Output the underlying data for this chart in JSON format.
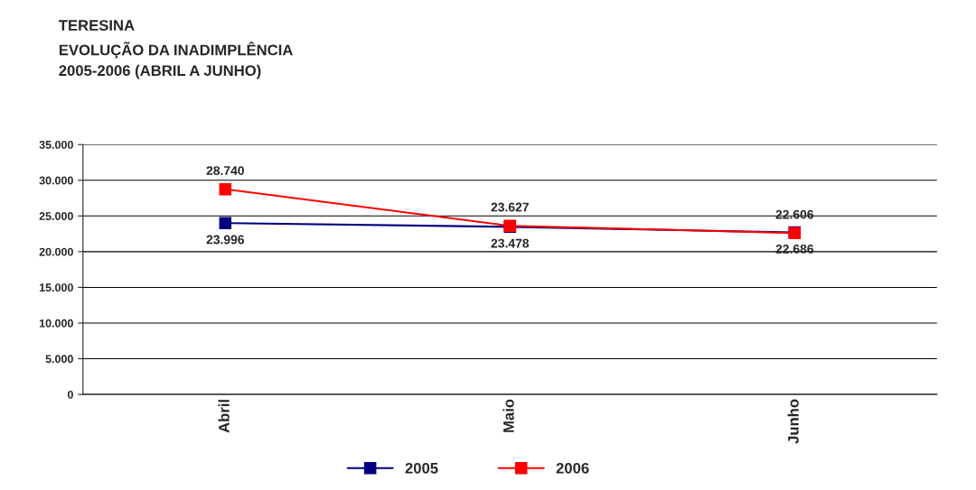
{
  "chart_data": {
    "type": "line",
    "title": "TERESINA\nEVOLUÇÃO DA INADIMPLÊNCIA\n2005-2006 (ABRIL A JUNHO)",
    "categories": [
      "Abril",
      "Maio",
      "Junho"
    ],
    "series": [
      {
        "name": "2005",
        "color": "#000080",
        "values": [
          23996,
          23478,
          22686
        ],
        "value_labels": [
          "23.996",
          "23.478",
          "22.686"
        ]
      },
      {
        "name": "2006",
        "color": "#ff0000",
        "values": [
          28740,
          23627,
          22606
        ],
        "value_labels": [
          "28.740",
          "23.627",
          "22.606"
        ]
      }
    ],
    "ylim": [
      0,
      35000
    ],
    "yticks": [
      {
        "value": 0,
        "label": "0"
      },
      {
        "value": 5000,
        "label": "5.000"
      },
      {
        "value": 10000,
        "label": "10.000"
      },
      {
        "value": 15000,
        "label": "15.000"
      },
      {
        "value": 20000,
        "label": "20.000"
      },
      {
        "value": 25000,
        "label": "25.000"
      },
      {
        "value": 30000,
        "label": "30.000"
      },
      {
        "value": 35000,
        "label": "35.000"
      }
    ],
    "grid": "y",
    "legend": "bottom",
    "marker": "square",
    "line_style": "solid"
  }
}
